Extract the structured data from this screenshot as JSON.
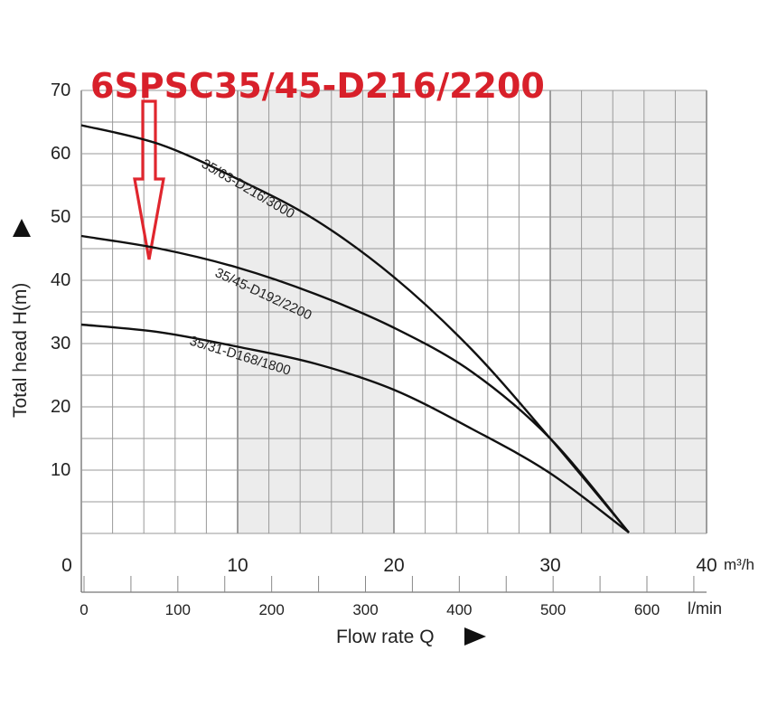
{
  "chart_data": {
    "type": "line",
    "title": "6SPSC35/45-D216/2200",
    "ylabel": "Total head H(m)",
    "xlabel": "Flow rate Q",
    "x_unit": "m³/h",
    "x2_unit": "l/min",
    "xlim": [
      0,
      40
    ],
    "ylim": [
      0,
      70
    ],
    "x_ticks": [
      "0",
      "10",
      "20",
      "30",
      "40"
    ],
    "x2_ticks": [
      "0",
      "100",
      "200",
      "300",
      "400",
      "500",
      "600"
    ],
    "y_ticks": [
      "10",
      "20",
      "30",
      "40",
      "50",
      "60",
      "70"
    ],
    "grid": true,
    "shaded_ranges_x": [
      [
        10,
        20
      ],
      [
        30,
        40
      ]
    ],
    "marker": "arrow pointing to the 35/45-D192/2200 curve",
    "series": [
      {
        "name": "35/63-D216/3000",
        "x": [
          0,
          5,
          10,
          15,
          20,
          25,
          30,
          35
        ],
        "y": [
          64.5,
          61.5,
          56,
          49.5,
          40.5,
          29,
          15,
          0
        ]
      },
      {
        "name": "35/45-D192/2200",
        "x": [
          0,
          5,
          10,
          15,
          20,
          25,
          30,
          35
        ],
        "y": [
          47,
          45,
          42,
          37.8,
          32.5,
          25.5,
          15,
          0
        ]
      },
      {
        "name": "35/31-D168/1800",
        "x": [
          0,
          5,
          10,
          15,
          20,
          25,
          30,
          35
        ],
        "y": [
          33,
          31.8,
          29.5,
          26.8,
          22.7,
          16.5,
          9.5,
          0
        ]
      }
    ]
  }
}
